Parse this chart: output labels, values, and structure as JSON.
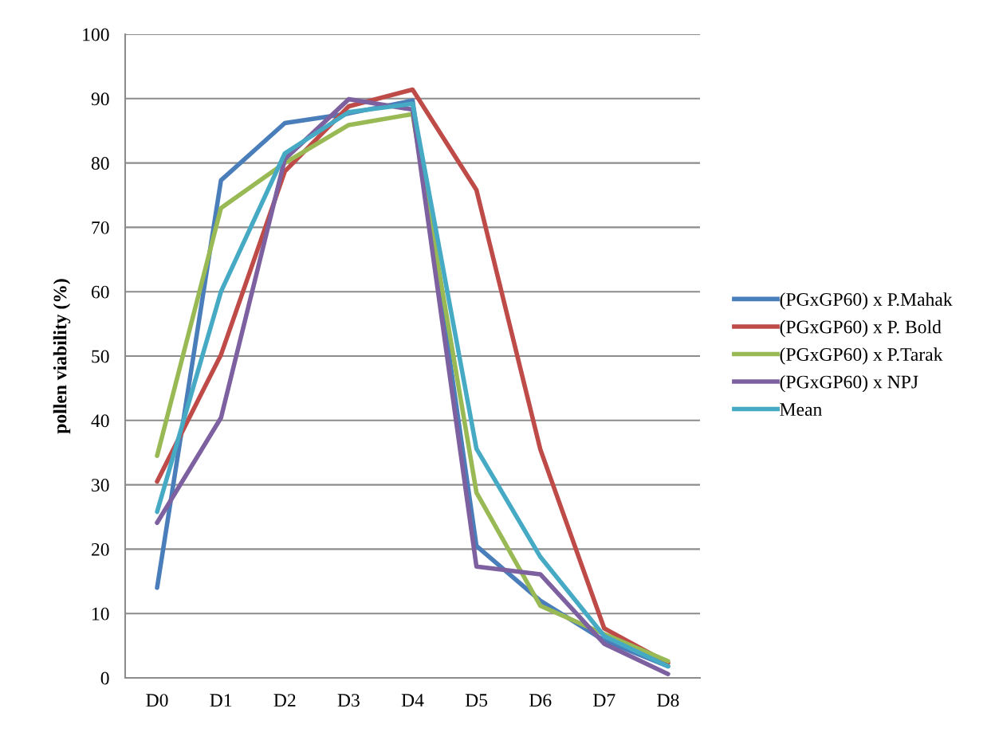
{
  "chart_data": {
    "type": "line",
    "ylabel": "pollen viability (%)",
    "categories": [
      "D0",
      "D1",
      "D2",
      "D3",
      "D4",
      "D5",
      "D6",
      "D7",
      "D8"
    ],
    "series": [
      {
        "name": "(PGxGP60) x P.Mahak",
        "color": "#4a7ebb",
        "values": [
          14,
          77.3,
          86.2,
          87.7,
          89.7,
          20.5,
          12,
          5.8,
          1.8
        ]
      },
      {
        "name": "(PGxGP60) x P. Bold",
        "color": "#be4b48",
        "values": [
          30.5,
          50.2,
          78.7,
          88.8,
          91.4,
          75.8,
          35.5,
          7.7,
          2.3
        ]
      },
      {
        "name": "(PGxGP60) x P.Tarak",
        "color": "#98b954",
        "values": [
          34.5,
          73,
          80,
          85.9,
          87.6,
          28.8,
          11.2,
          6.8,
          2.6
        ]
      },
      {
        "name": "(PGxGP60) x NPJ",
        "color": "#7d60a0",
        "values": [
          24.1,
          40.4,
          80.6,
          89.9,
          88.3,
          17.3,
          16.1,
          5.3,
          0.6
        ]
      },
      {
        "name": "Mean",
        "color": "#46aac5",
        "values": [
          25.8,
          60,
          81.5,
          87.9,
          89.2,
          35.6,
          18.8,
          6.5,
          1.8
        ]
      }
    ],
    "ylim": [
      0,
      100
    ],
    "yticks": [
      0,
      10,
      20,
      30,
      40,
      50,
      60,
      70,
      80,
      90,
      100
    ],
    "grid": "y",
    "legend": "right",
    "marker": "none",
    "line_style": "solid"
  }
}
